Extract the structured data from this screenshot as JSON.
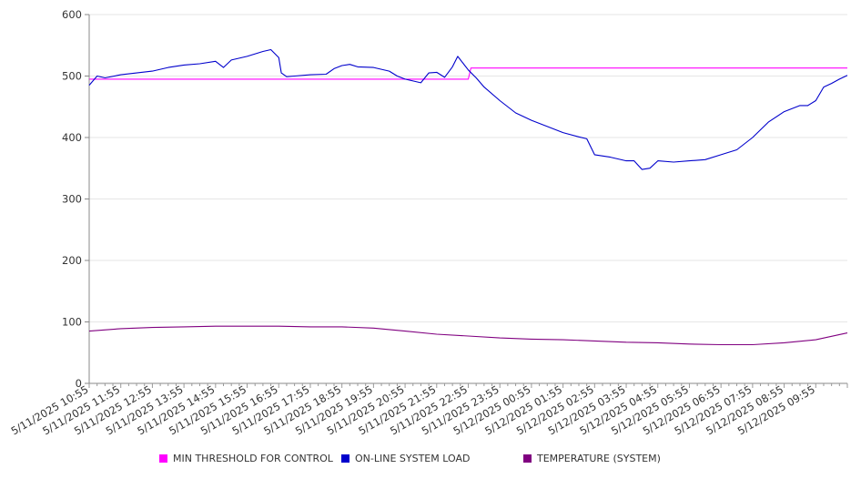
{
  "chart_data": {
    "type": "line",
    "title": "",
    "xlabel": "",
    "ylabel": "",
    "ylim": [
      0,
      600
    ],
    "yticks": [
      0,
      100,
      200,
      300,
      400,
      500,
      600
    ],
    "grid": true,
    "legend_position": "bottom",
    "x_start": "5/11/2025 10:55",
    "x_end": "5/12/2025 10:55",
    "x_tick_labels": [
      "5/11/2025 10:55",
      "5/11/2025 11:55",
      "5/11/2025 12:55",
      "5/11/2025 13:55",
      "5/11/2025 14:55",
      "5/11/2025 15:55",
      "5/11/2025 16:55",
      "5/11/2025 17:55",
      "5/11/2025 18:55",
      "5/11/2025 19:55",
      "5/11/2025 20:55",
      "5/11/2025 21:55",
      "5/11/2025 22:55",
      "5/11/2025 23:55",
      "5/12/2025 00:55",
      "5/12/2025 01:55",
      "5/12/2025 02:55",
      "5/12/2025 03:55",
      "5/12/2025 04:55",
      "5/12/2025 05:55",
      "5/12/2025 06:55",
      "5/12/2025 07:55",
      "5/12/2025 08:55",
      "5/12/2025 09:55"
    ],
    "series": [
      {
        "name": "MIN THRESHOLD FOR CONTROL",
        "color": "#ff00ff",
        "points": [
          [
            "5/11/2025 10:55",
            495
          ],
          [
            "5/11/2025 22:55",
            495
          ],
          [
            "5/11/2025 23:00",
            513
          ],
          [
            "5/12/2025 10:55",
            513
          ]
        ]
      },
      {
        "name": "ON-LINE SYSTEM LOAD",
        "color": "#0000cc",
        "points": [
          [
            "5/11/2025 10:55",
            485
          ],
          [
            "5/11/2025 11:10",
            500
          ],
          [
            "5/11/2025 11:25",
            497
          ],
          [
            "5/11/2025 11:55",
            502
          ],
          [
            "5/11/2025 12:25",
            505
          ],
          [
            "5/11/2025 12:55",
            508
          ],
          [
            "5/11/2025 13:25",
            514
          ],
          [
            "5/11/2025 13:55",
            518
          ],
          [
            "5/11/2025 14:25",
            520
          ],
          [
            "5/11/2025 14:55",
            524
          ],
          [
            "5/11/2025 15:10",
            514
          ],
          [
            "5/11/2025 15:25",
            526
          ],
          [
            "5/11/2025 15:55",
            532
          ],
          [
            "5/11/2025 16:25",
            540
          ],
          [
            "5/11/2025 16:40",
            543
          ],
          [
            "5/11/2025 16:55",
            530
          ],
          [
            "5/11/2025 17:00",
            505
          ],
          [
            "5/11/2025 17:10",
            499
          ],
          [
            "5/11/2025 17:25",
            500
          ],
          [
            "5/11/2025 17:55",
            502
          ],
          [
            "5/11/2025 18:25",
            503
          ],
          [
            "5/11/2025 18:40",
            512
          ],
          [
            "5/11/2025 18:55",
            517
          ],
          [
            "5/11/2025 19:10",
            519
          ],
          [
            "5/11/2025 19:25",
            515
          ],
          [
            "5/11/2025 19:55",
            514
          ],
          [
            "5/11/2025 20:25",
            508
          ],
          [
            "5/11/2025 20:40",
            500
          ],
          [
            "5/11/2025 20:55",
            495
          ],
          [
            "5/11/2025 21:25",
            489
          ],
          [
            "5/11/2025 21:40",
            505
          ],
          [
            "5/11/2025 21:55",
            506
          ],
          [
            "5/11/2025 22:10",
            498
          ],
          [
            "5/11/2025 22:25",
            515
          ],
          [
            "5/11/2025 22:35",
            532
          ],
          [
            "5/11/2025 22:55",
            510
          ],
          [
            "5/11/2025 23:10",
            497
          ],
          [
            "5/11/2025 23:25",
            482
          ],
          [
            "5/11/2025 23:55",
            460
          ],
          [
            "5/12/2025 00:25",
            440
          ],
          [
            "5/12/2025 00:55",
            428
          ],
          [
            "5/12/2025 01:25",
            418
          ],
          [
            "5/12/2025 01:55",
            408
          ],
          [
            "5/12/2025 02:25",
            401
          ],
          [
            "5/12/2025 02:40",
            398
          ],
          [
            "5/12/2025 02:55",
            372
          ],
          [
            "5/12/2025 03:25",
            368
          ],
          [
            "5/12/2025 03:55",
            362
          ],
          [
            "5/12/2025 04:10",
            362
          ],
          [
            "5/12/2025 04:25",
            348
          ],
          [
            "5/12/2025 04:40",
            350
          ],
          [
            "5/12/2025 04:55",
            362
          ],
          [
            "5/12/2025 05:25",
            360
          ],
          [
            "5/12/2025 05:55",
            362
          ],
          [
            "5/12/2025 06:25",
            364
          ],
          [
            "5/12/2025 06:55",
            372
          ],
          [
            "5/12/2025 07:25",
            380
          ],
          [
            "5/12/2025 07:55",
            400
          ],
          [
            "5/12/2025 08:25",
            425
          ],
          [
            "5/12/2025 08:55",
            442
          ],
          [
            "5/12/2025 09:25",
            452
          ],
          [
            "5/12/2025 09:40",
            452
          ],
          [
            "5/12/2025 09:55",
            460
          ],
          [
            "5/12/2025 10:10",
            482
          ],
          [
            "5/12/2025 10:25",
            488
          ],
          [
            "5/12/2025 10:40",
            495
          ],
          [
            "5/12/2025 10:55",
            501
          ]
        ]
      },
      {
        "name": "TEMPERATURE (SYSTEM)",
        "color": "#800080",
        "points": [
          [
            "5/11/2025 10:55",
            85
          ],
          [
            "5/11/2025 11:55",
            89
          ],
          [
            "5/11/2025 12:55",
            91
          ],
          [
            "5/11/2025 13:55",
            92
          ],
          [
            "5/11/2025 14:55",
            93
          ],
          [
            "5/11/2025 15:55",
            93
          ],
          [
            "5/11/2025 16:55",
            93
          ],
          [
            "5/11/2025 17:55",
            92
          ],
          [
            "5/11/2025 18:55",
            92
          ],
          [
            "5/11/2025 19:55",
            90
          ],
          [
            "5/11/2025 20:55",
            85
          ],
          [
            "5/11/2025 21:55",
            80
          ],
          [
            "5/11/2025 22:55",
            77
          ],
          [
            "5/11/2025 23:55",
            74
          ],
          [
            "5/12/2025 00:55",
            72
          ],
          [
            "5/12/2025 01:55",
            71
          ],
          [
            "5/12/2025 02:55",
            69
          ],
          [
            "5/12/2025 03:55",
            67
          ],
          [
            "5/12/2025 04:55",
            66
          ],
          [
            "5/12/2025 05:55",
            64
          ],
          [
            "5/12/2025 06:55",
            63
          ],
          [
            "5/12/2025 07:55",
            63
          ],
          [
            "5/12/2025 08:55",
            66
          ],
          [
            "5/12/2025 09:55",
            71
          ],
          [
            "5/12/2025 10:55",
            82
          ]
        ]
      }
    ]
  }
}
